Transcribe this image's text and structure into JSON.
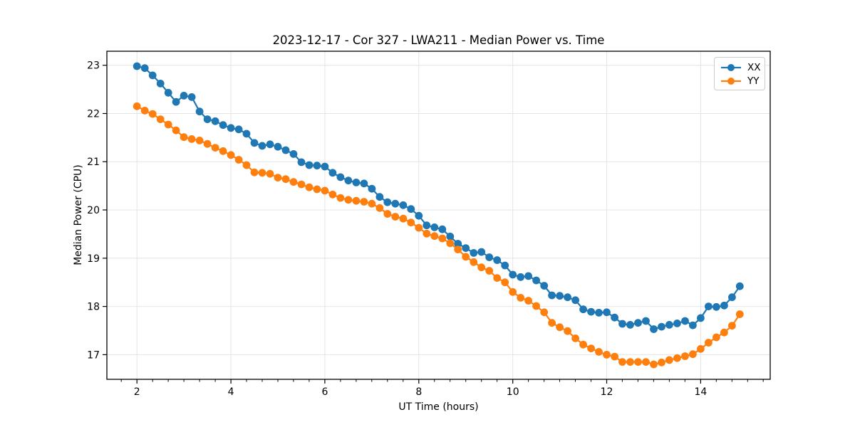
{
  "chart_data": {
    "type": "line",
    "title": "2023-12-17 - Cor 327 - LWA211 - Median Power vs. Time",
    "xlabel": "UT Time (hours)",
    "ylabel": "Median Power (CPU)",
    "xlim": [
      1.36,
      15.48
    ],
    "ylim": [
      16.49,
      23.29
    ],
    "xticks": [
      2,
      4,
      6,
      8,
      10,
      12,
      14
    ],
    "yticks": [
      17,
      18,
      19,
      20,
      21,
      22,
      23
    ],
    "x_minor_step": 0.3333,
    "grid": true,
    "grid_color": "#e4e4e4",
    "legend_position": "upper right",
    "marker": "circle",
    "x": [
      2.0,
      2.167,
      2.333,
      2.5,
      2.667,
      2.833,
      3.0,
      3.167,
      3.333,
      3.5,
      3.667,
      3.833,
      4.0,
      4.167,
      4.333,
      4.5,
      4.667,
      4.833,
      5.0,
      5.167,
      5.333,
      5.5,
      5.667,
      5.833,
      6.0,
      6.167,
      6.333,
      6.5,
      6.667,
      6.833,
      7.0,
      7.167,
      7.333,
      7.5,
      7.667,
      7.833,
      8.0,
      8.167,
      8.333,
      8.5,
      8.667,
      8.833,
      9.0,
      9.167,
      9.333,
      9.5,
      9.667,
      9.833,
      10.0,
      10.167,
      10.333,
      10.5,
      10.667,
      10.833,
      11.0,
      11.167,
      11.333,
      11.5,
      11.667,
      11.833,
      12.0,
      12.167,
      12.333,
      12.5,
      12.667,
      12.833,
      13.0,
      13.167,
      13.333,
      13.5,
      13.667,
      13.833,
      14.0,
      14.167,
      14.333,
      14.5,
      14.667,
      14.833
    ],
    "series": [
      {
        "name": "XX",
        "color": "#1f77b4",
        "values": [
          22.98,
          22.94,
          22.79,
          22.62,
          22.43,
          22.24,
          22.37,
          22.34,
          22.04,
          21.88,
          21.84,
          21.76,
          21.7,
          21.67,
          21.58,
          21.39,
          21.33,
          21.36,
          21.31,
          21.24,
          21.16,
          20.99,
          20.93,
          20.92,
          20.9,
          20.77,
          20.68,
          20.61,
          20.57,
          20.55,
          20.44,
          20.27,
          20.16,
          20.13,
          20.1,
          20.02,
          19.88,
          19.68,
          19.64,
          19.6,
          19.45,
          19.3,
          19.21,
          19.11,
          19.13,
          19.02,
          18.96,
          18.85,
          18.66,
          18.61,
          18.63,
          18.54,
          18.43,
          18.23,
          18.22,
          18.19,
          18.13,
          17.94,
          17.89,
          17.87,
          17.88,
          17.77,
          17.64,
          17.62,
          17.66,
          17.7,
          17.53,
          17.58,
          17.62,
          17.65,
          17.7,
          17.61,
          17.76,
          18.0,
          17.99,
          18.02,
          18.19,
          18.42
        ]
      },
      {
        "name": "YY",
        "color": "#ff7f0e",
        "values": [
          22.15,
          22.06,
          21.99,
          21.88,
          21.77,
          21.65,
          21.51,
          21.47,
          21.44,
          21.37,
          21.29,
          21.22,
          21.14,
          21.04,
          20.93,
          20.78,
          20.77,
          20.75,
          20.67,
          20.64,
          20.58,
          20.53,
          20.47,
          20.43,
          20.4,
          20.32,
          20.25,
          20.21,
          20.19,
          20.17,
          20.13,
          20.04,
          19.92,
          19.86,
          19.82,
          19.74,
          19.63,
          19.51,
          19.46,
          19.41,
          19.31,
          19.18,
          19.03,
          18.92,
          18.81,
          18.74,
          18.59,
          18.5,
          18.3,
          18.18,
          18.12,
          18.01,
          17.88,
          17.66,
          17.57,
          17.49,
          17.34,
          17.21,
          17.13,
          17.06,
          17.0,
          16.96,
          16.85,
          16.85,
          16.85,
          16.85,
          16.8,
          16.84,
          16.89,
          16.93,
          16.97,
          17.01,
          17.12,
          17.25,
          17.36,
          17.46,
          17.6,
          17.84
        ]
      }
    ]
  }
}
